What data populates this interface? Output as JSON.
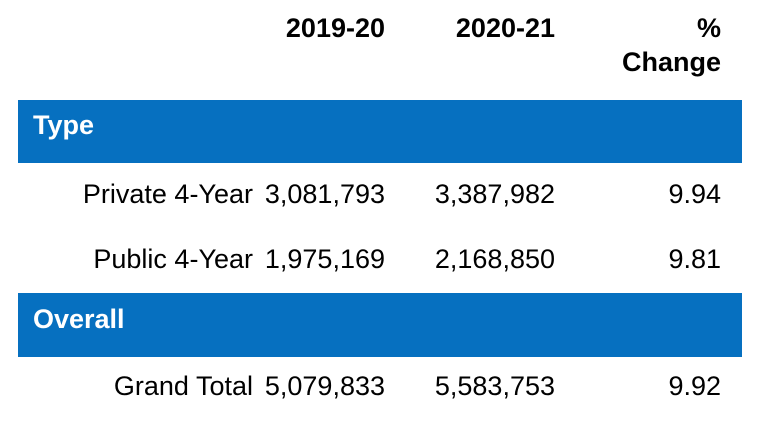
{
  "chart_data": {
    "type": "table",
    "columns": [
      "",
      "2019-20",
      "2020-21",
      "% Change"
    ],
    "sections": [
      {
        "header": "Type",
        "rows": [
          {
            "label": "Private 4-Year",
            "values": [
              3081793,
              3387982,
              9.94
            ]
          },
          {
            "label": "Public 4-Year",
            "values": [
              1975169,
              2168850,
              9.81
            ]
          }
        ]
      },
      {
        "header": "Overall",
        "rows": [
          {
            "label": "Grand Total",
            "values": [
              5079833,
              5583753,
              9.92
            ]
          }
        ]
      }
    ],
    "layout": {
      "gridlines": false,
      "section_bars": "full-width blue",
      "alignment": "right"
    }
  },
  "table": {
    "header": {
      "col_2019_20": "2019-20",
      "col_2020_21": "2020-21",
      "pct_line1": "%",
      "pct_line2": "Change"
    },
    "section1": {
      "title": "Type",
      "row1": {
        "label": "Private 4-Year",
        "v1": "3,081,793",
        "v2": "3,387,982",
        "pct": "9.94"
      },
      "row2": {
        "label": "Public 4-Year",
        "v1": "1,975,169",
        "v2": "2,168,850",
        "pct": "9.81"
      }
    },
    "section2": {
      "title": "Overall",
      "row1": {
        "label": "Grand Total",
        "v1": "5,079,833",
        "v2": "5,583,753",
        "pct": "9.92"
      }
    }
  },
  "colors": {
    "section_bar_blue": "#0670C0",
    "section_bar_text": "#FFFFFF",
    "body_text": "#000000",
    "background": "#FFFFFF"
  }
}
